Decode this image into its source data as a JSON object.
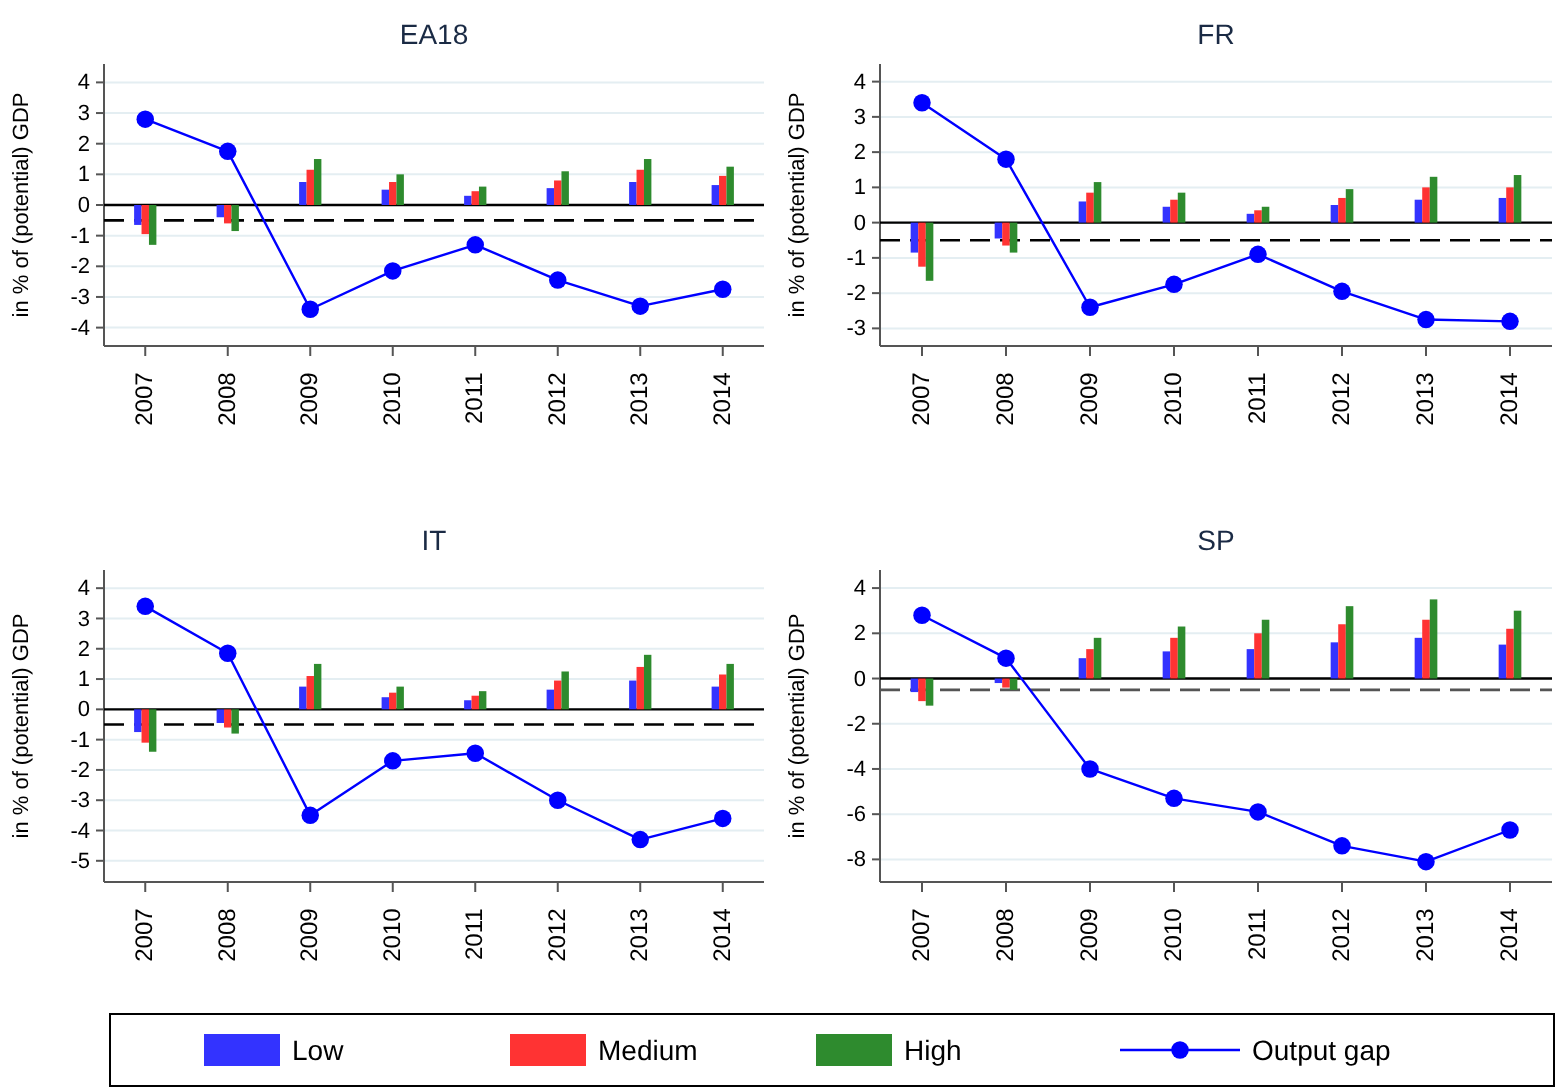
{
  "chart_data": [
    {
      "type": "bar",
      "title": "EA18",
      "ylabel": "in % of (potential) GDP",
      "categories": [
        "2007",
        "2008",
        "2009",
        "2010",
        "2011",
        "2012",
        "2013",
        "2014"
      ],
      "ylim": [
        -4.6,
        4.6
      ],
      "yticks": [
        -4,
        -3,
        -2,
        -1,
        0,
        1,
        2,
        3,
        4
      ],
      "grid": "y",
      "legend": "bottom",
      "marker": "circle",
      "ref_lines": [
        {
          "axis": "y",
          "value": -0.5,
          "line_style": "dashed",
          "color": "#000000"
        }
      ],
      "series": [
        {
          "name": "Low",
          "color": "#3333ff",
          "values": [
            -0.65,
            -0.4,
            0.75,
            0.5,
            0.3,
            0.55,
            0.75,
            0.65
          ]
        },
        {
          "name": "Medium",
          "color": "#ff3333",
          "values": [
            -0.95,
            -0.6,
            1.15,
            0.75,
            0.45,
            0.8,
            1.15,
            0.95
          ]
        },
        {
          "name": "High",
          "color": "#2e8b2e",
          "values": [
            -1.3,
            -0.85,
            1.5,
            1.0,
            0.6,
            1.1,
            1.5,
            1.25
          ]
        },
        {
          "name": "Output gap",
          "type": "line",
          "color": "#0000ff",
          "values": [
            2.8,
            1.75,
            -3.4,
            -2.15,
            -1.3,
            -2.45,
            -3.3,
            -2.75
          ]
        }
      ]
    },
    {
      "type": "bar",
      "title": "FR",
      "ylabel": "in % of (potential) GDP",
      "categories": [
        "2007",
        "2008",
        "2009",
        "2010",
        "2011",
        "2012",
        "2013",
        "2014"
      ],
      "ylim": [
        -3.5,
        4.5
      ],
      "yticks": [
        -3,
        -2,
        -1,
        0,
        1,
        2,
        3,
        4
      ],
      "grid": "y",
      "marker": "circle",
      "ref_lines": [
        {
          "axis": "y",
          "value": -0.5,
          "line_style": "dashed",
          "color": "#000000"
        }
      ],
      "series": [
        {
          "color": "#3333ff",
          "values": [
            -0.85,
            -0.45,
            0.6,
            0.45,
            0.25,
            0.5,
            0.65,
            0.7
          ]
        },
        {
          "color": "#ff3333",
          "values": [
            -1.25,
            -0.65,
            0.85,
            0.65,
            0.35,
            0.7,
            1.0,
            1.0
          ]
        },
        {
          "color": "#2e8b2e",
          "values": [
            -1.65,
            -0.85,
            1.15,
            0.85,
            0.45,
            0.95,
            1.3,
            1.35
          ]
        },
        {
          "type": "line",
          "color": "#0000ff",
          "values": [
            3.4,
            1.8,
            -2.4,
            -1.75,
            -0.9,
            -1.95,
            -2.75,
            -2.8
          ]
        }
      ]
    },
    {
      "type": "bar",
      "title": "IT",
      "ylabel": "in % of (potential) GDP",
      "categories": [
        "2007",
        "2008",
        "2009",
        "2010",
        "2011",
        "2012",
        "2013",
        "2014"
      ],
      "ylim": [
        -5.7,
        4.6
      ],
      "yticks": [
        -5,
        -4,
        -3,
        -2,
        -1,
        0,
        1,
        2,
        3,
        4
      ],
      "grid": "y",
      "marker": "circle",
      "ref_lines": [
        {
          "axis": "y",
          "value": -0.5,
          "line_style": "dashed",
          "color": "#000000"
        }
      ],
      "series": [
        {
          "color": "#3333ff",
          "values": [
            -0.75,
            -0.45,
            0.75,
            0.4,
            0.3,
            0.65,
            0.95,
            0.75
          ]
        },
        {
          "color": "#ff3333",
          "values": [
            -1.1,
            -0.6,
            1.1,
            0.55,
            0.45,
            0.95,
            1.4,
            1.15
          ]
        },
        {
          "color": "#2e8b2e",
          "values": [
            -1.4,
            -0.8,
            1.5,
            0.75,
            0.6,
            1.25,
            1.8,
            1.5
          ]
        },
        {
          "type": "line",
          "color": "#0000ff",
          "values": [
            3.4,
            1.85,
            -3.5,
            -1.7,
            -1.45,
            -3.0,
            -4.3,
            -3.6
          ]
        }
      ]
    },
    {
      "type": "bar",
      "title": "SP",
      "ylabel": "in % of (potential) GDP",
      "categories": [
        "2007",
        "2008",
        "2009",
        "2010",
        "2011",
        "2012",
        "2013",
        "2014"
      ],
      "ylim": [
        -9,
        4.8
      ],
      "yticks": [
        -8,
        -6,
        -4,
        -2,
        0,
        2,
        4
      ],
      "grid": "y",
      "marker": "circle",
      "ref_lines": [
        {
          "axis": "y",
          "value": -0.5,
          "line_style": "dashed",
          "color": "#555555"
        }
      ],
      "series": [
        {
          "color": "#3333ff",
          "values": [
            -0.6,
            -0.2,
            0.9,
            1.2,
            1.3,
            1.6,
            1.8,
            1.5
          ]
        },
        {
          "color": "#ff3333",
          "values": [
            -1.0,
            -0.4,
            1.3,
            1.8,
            2.0,
            2.4,
            2.6,
            2.2
          ]
        },
        {
          "color": "#2e8b2e",
          "values": [
            -1.2,
            -0.5,
            1.8,
            2.3,
            2.6,
            3.2,
            3.5,
            3.0
          ]
        },
        {
          "type": "line",
          "color": "#0000ff",
          "values": [
            2.8,
            0.9,
            -4.0,
            -5.3,
            -5.9,
            -7.4,
            -8.1,
            -6.7
          ]
        }
      ]
    }
  ]
}
